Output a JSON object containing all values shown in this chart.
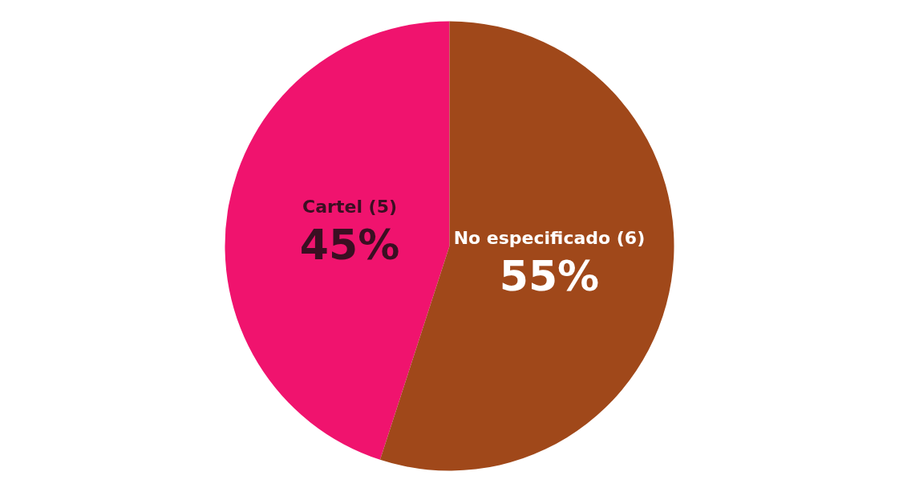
{
  "chart_data": {
    "type": "pie",
    "categories": [
      "Cartel (5)",
      "No especificado (6)"
    ],
    "values": [
      45,
      55
    ],
    "colors": [
      "#f0136e",
      "#a0481a"
    ],
    "value_labels": [
      "45%",
      "55%"
    ]
  }
}
